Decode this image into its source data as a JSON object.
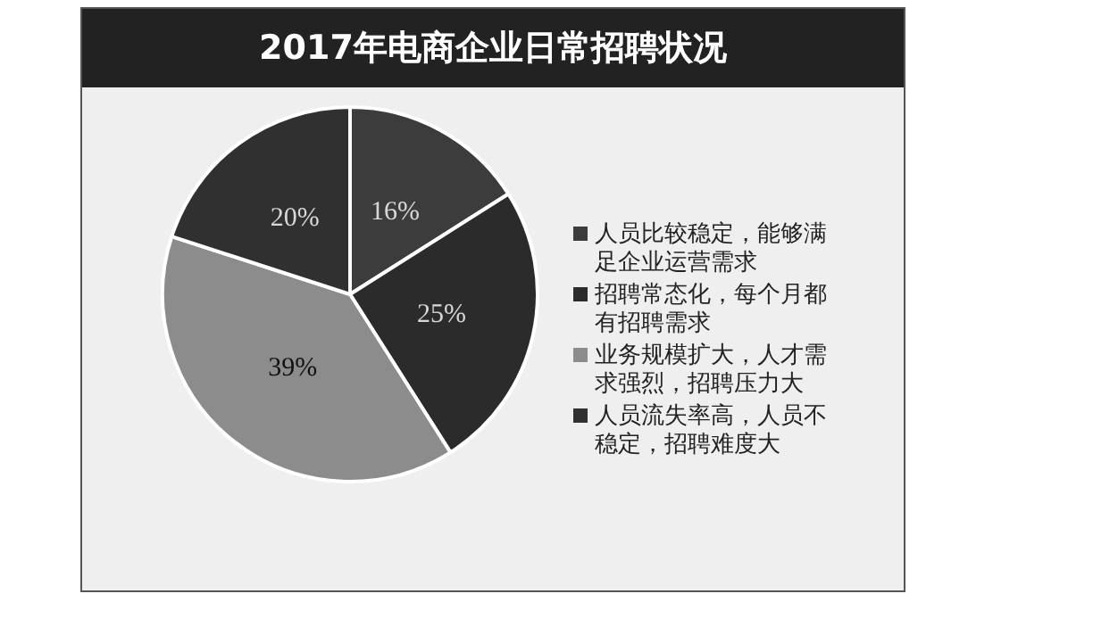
{
  "chart_data": {
    "type": "pie",
    "title": "2017年电商企业日常招聘状况",
    "categories": [
      "人员比较稳定，能够满足企业运营需求",
      "招聘常态化，每个月都有招聘需求",
      "业务规模扩大，人才需求强烈，招聘压力大",
      "人员流失率高，人员不稳定，招聘难度大"
    ],
    "values": [
      16,
      25,
      39,
      20
    ],
    "colors": [
      "#3c3c3c",
      "#2b2b2b",
      "#8c8c8c",
      "#303030"
    ],
    "value_labels": [
      "16%",
      "25%",
      "39%",
      "20%"
    ],
    "legend": "right"
  }
}
